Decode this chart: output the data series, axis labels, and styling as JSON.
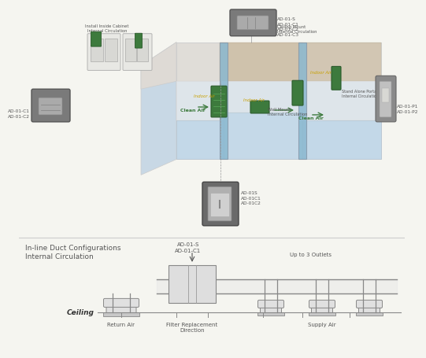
{
  "bg_color": "#f5f5f0",
  "room_blue": "#bdd5e8",
  "room_blue_dark": "#9bbdd6",
  "room_tan": "#c9b99a",
  "room_white": "#e8e8e2",
  "room_gray": "#d8d8d4",
  "room_edge": "#aaaaaa",
  "green_unit": "#3d7a3d",
  "green_dark": "#2a5a2a",
  "device_gray": "#7a7a7a",
  "device_gray2": "#909090",
  "device_light": "#c0c0c0",
  "text_dark": "#555555",
  "text_gray": "#888888",
  "yellow": "#c8a000",
  "green_text": "#3d7a3d",
  "line_gray": "#aaaaaa",
  "divider_color": "#cccccc",
  "label_ceiling_top": "AD-01-S\nAD-01-C1\nAD-01-C2\nAD-01-C3",
  "label_ceiling_mount": "Ceiling Mount\nInternal Circulation",
  "label_install": "Install Inside Cabinet\nInternal Circulation",
  "label_c1c2": "AD-01-C1\nAD-01-C2",
  "label_wall_mount": "Wall Mount\nInternal Circulation",
  "label_standalone": "Stand Alone Portable\nInternal Circulation",
  "label_p1p2": "AD-01-P1\nAD-01-P2",
  "label_bottom_unit": "AD-01S\nAD-01C1\nAD-01C2",
  "label_clean_air": "Clean Air",
  "label_indoor_air": "Indoor Air",
  "label_title1": "In-line Duct Configurations",
  "label_title2": "Internal Circulation",
  "label_ad01s": "AD-01-S\nAD-01-C1",
  "label_outlets": "Up to 3 Outlets",
  "label_ceiling": "Ceiling",
  "label_return": "Return Air",
  "label_filter": "Filter Replacement\nDirection",
  "label_supply": "Supply Air"
}
